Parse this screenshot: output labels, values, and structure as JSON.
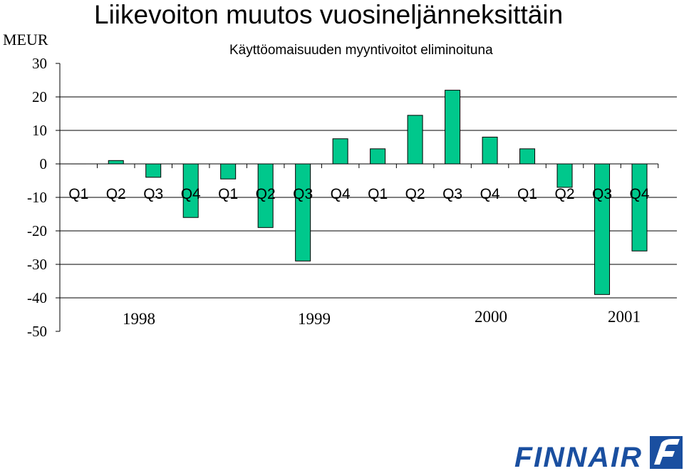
{
  "chart_data": {
    "type": "bar",
    "title": "Liikevoiton muutos vuosineljänneksittäin",
    "subtitle": "Käyttöomaisuuden myyntivoitot eliminoituna",
    "unit_label": "MEUR",
    "ylim": [
      -50,
      30
    ],
    "yticks": [
      30,
      20,
      10,
      0,
      -10,
      -20,
      -30,
      -40,
      -50
    ],
    "grid": true,
    "bar_color": "#00c88c",
    "categories": [
      "Q1",
      "Q2",
      "Q3",
      "Q4",
      "Q1",
      "Q2",
      "Q3",
      "Q4",
      "Q1",
      "Q2",
      "Q3",
      "Q4",
      "Q1",
      "Q2",
      "Q3",
      "Q4"
    ],
    "values": [
      0,
      1,
      -4,
      -16,
      -4.5,
      -19,
      -29,
      7.5,
      4.5,
      14.5,
      22,
      8,
      4.5,
      -7,
      -39,
      -26
    ],
    "year_labels": [
      "1998",
      "1999",
      "2000",
      "2001"
    ]
  },
  "logo": {
    "text": "FINNAIR",
    "color": "#1a4fa0",
    "icon": "finnair-f-emblem-icon"
  }
}
